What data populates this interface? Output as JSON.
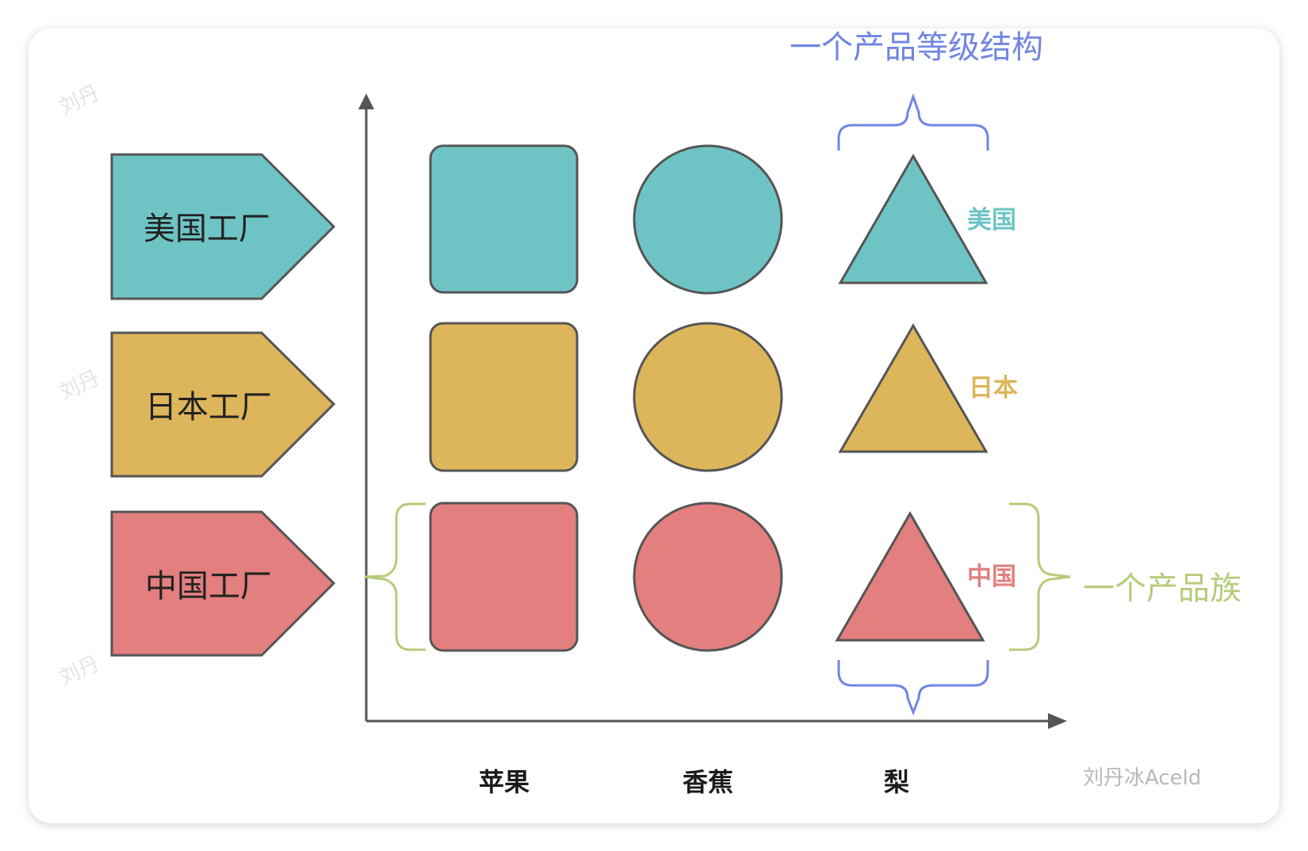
{
  "factories": [
    {
      "label": "美国工厂",
      "color": "#6ec4c4"
    },
    {
      "label": "日本工厂",
      "color": "#ddb55a"
    },
    {
      "label": "中国工厂",
      "color": "#e37f7f"
    }
  ],
  "products": [
    {
      "label": "苹果",
      "shape": "rounded-square"
    },
    {
      "label": "香蕉",
      "shape": "circle"
    },
    {
      "label": "梨",
      "shape": "triangle"
    }
  ],
  "row_labels": [
    {
      "label": "美国",
      "color": "#6ec4c4"
    },
    {
      "label": "日本",
      "color": "#ddb55a"
    },
    {
      "label": "中国",
      "color": "#e37f7f"
    }
  ],
  "annotations": {
    "product_hierarchy": {
      "label": "一个产品等级结构",
      "color": "#7186e0"
    },
    "product_family": {
      "label": "一个产品族",
      "color": "#b6cb79"
    }
  },
  "watermark": "刘丹冰Aceld",
  "ghost_watermark": "刘丹",
  "stroke_color": "#555555"
}
